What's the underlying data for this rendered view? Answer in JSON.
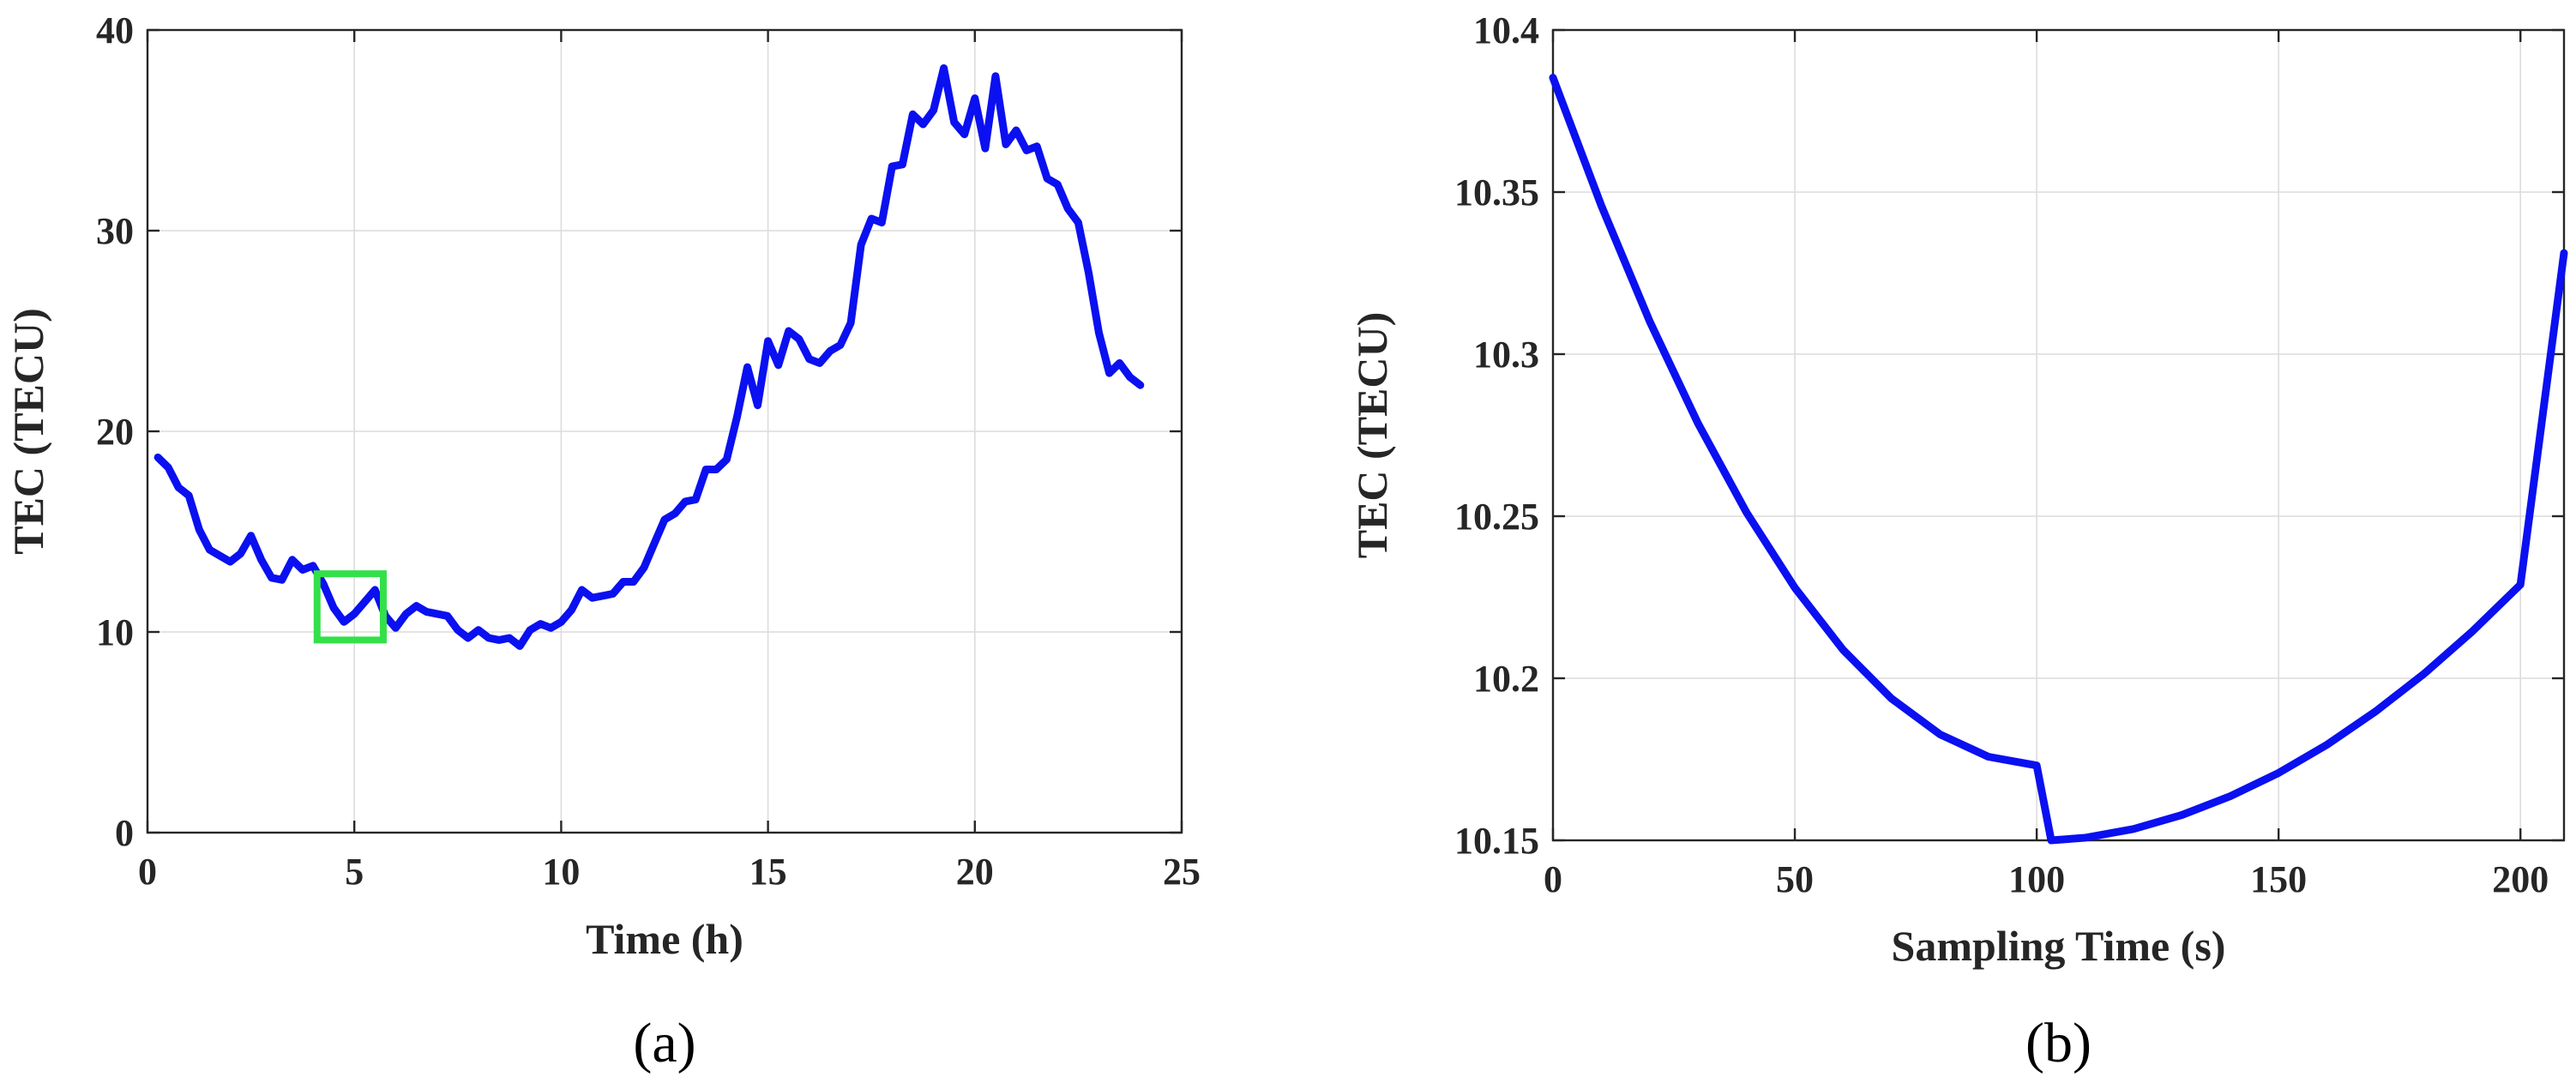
{
  "chart_data": [
    {
      "type": "line",
      "panel_label": "(a)",
      "xlabel": "Time (h)",
      "ylabel": "TEC (TECU)",
      "xlim": [
        0,
        25
      ],
      "ylim": [
        0,
        40
      ],
      "xticks": [
        "0",
        "5",
        "10",
        "15",
        "20",
        "25"
      ],
      "yticks": [
        "0",
        "10",
        "20",
        "30",
        "40"
      ],
      "grid": true,
      "line_color": "#0A10F0",
      "highlight_box": {
        "x": [
          4.1,
          5.7
        ],
        "y": [
          9.6,
          12.9
        ],
        "color": "#33E04A"
      },
      "series": [
        {
          "x": [
            0.25,
            0.5,
            0.75,
            1,
            1.25,
            1.5,
            1.75,
            2,
            2.25,
            2.5,
            2.75,
            3,
            3.25,
            3.5,
            3.75,
            4,
            4.25,
            4.5,
            4.75,
            5,
            5.25,
            5.5,
            5.75,
            6,
            6.25,
            6.5,
            6.75,
            7,
            7.25,
            7.5,
            7.75,
            8,
            8.25,
            8.5,
            8.75,
            9,
            9.25,
            9.5,
            9.75,
            10,
            10.25,
            10.5,
            10.75,
            11,
            11.25,
            11.5,
            11.75,
            12,
            12.25,
            12.5,
            12.75,
            13,
            13.25,
            13.5,
            13.75,
            14,
            14.25,
            14.5,
            14.75,
            15,
            15.25,
            15.5,
            15.75,
            16,
            16.25,
            16.5,
            16.75,
            17,
            17.25,
            17.5,
            17.75,
            18,
            18.25,
            18.5,
            18.75,
            19,
            19.25,
            19.5,
            19.75,
            20,
            20.25,
            20.5,
            20.75,
            21,
            21.25,
            21.5,
            21.75,
            22,
            22.25,
            22.5,
            22.75,
            23,
            23.25,
            23.5,
            23.75,
            24
          ],
          "values": [
            18.7,
            18.2,
            17.2,
            16.8,
            15.1,
            14.1,
            13.8,
            13.5,
            13.9,
            14.8,
            13.6,
            12.7,
            12.6,
            13.6,
            13.1,
            13.3,
            12.4,
            11.2,
            10.5,
            10.9,
            11.5,
            12.1,
            10.8,
            10.2,
            10.9,
            11.3,
            11.0,
            10.9,
            10.8,
            10.1,
            9.7,
            10.1,
            9.7,
            9.6,
            9.7,
            9.3,
            10.1,
            10.4,
            10.2,
            10.5,
            11.1,
            12.1,
            11.7,
            11.8,
            11.9,
            12.5,
            12.5,
            13.2,
            14.4,
            15.6,
            15.9,
            16.5,
            16.6,
            18.1,
            18.1,
            18.6,
            20.7,
            23.2,
            21.3,
            24.5,
            23.3,
            25.0,
            24.6,
            23.6,
            23.4,
            24.0,
            24.3,
            25.4,
            29.3,
            30.6,
            30.4,
            33.2,
            33.3,
            35.8,
            35.3,
            36.0,
            38.1,
            35.4,
            34.8,
            36.6,
            34.1,
            37.7,
            34.3,
            35.0,
            34.0,
            34.2,
            32.6,
            32.3,
            31.1,
            30.4,
            27.9,
            24.9,
            22.9,
            23.4,
            22.7,
            22.3
          ]
        }
      ]
    },
    {
      "type": "line",
      "panel_label": "(b)",
      "xlabel": "Sampling Time (s)",
      "ylabel": "TEC (TECU)",
      "xlim": [
        0,
        209
      ],
      "ylim": [
        10.15,
        10.4
      ],
      "xticks": [
        "0",
        "50",
        "100",
        "150",
        "200"
      ],
      "yticks": [
        "10.15",
        "10.2",
        "10.25",
        "10.3",
        "10.35",
        "10.4"
      ],
      "grid": true,
      "line_color": "#0A10F0",
      "series": [
        {
          "x": [
            0,
            10,
            20,
            30,
            40,
            50,
            60,
            70,
            80,
            90,
            100,
            103,
            110,
            120,
            130,
            140,
            150,
            160,
            170,
            180,
            190,
            200,
            209
          ],
          "values": [
            10.3853,
            10.3458,
            10.3101,
            10.2786,
            10.2512,
            10.2279,
            10.2087,
            10.1937,
            10.1827,
            10.1758,
            10.1731,
            10.15,
            10.1508,
            10.1535,
            10.1578,
            10.1636,
            10.1708,
            10.1795,
            10.1897,
            10.2013,
            10.2144,
            10.2289,
            10.3312
          ]
        }
      ]
    }
  ]
}
